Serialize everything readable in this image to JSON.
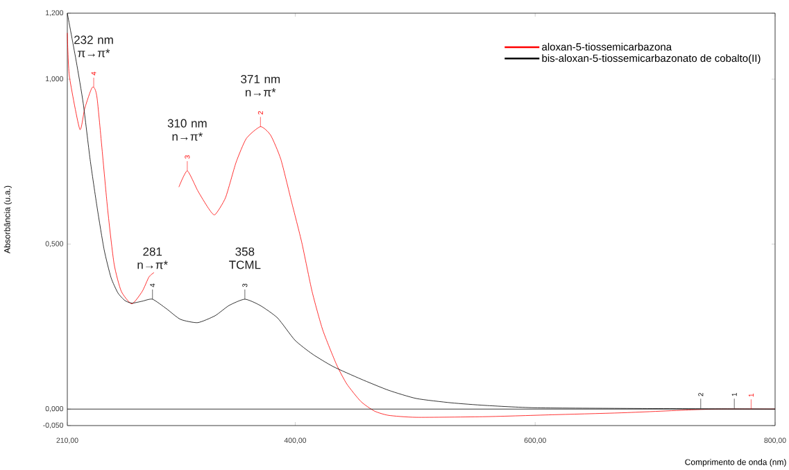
{
  "chart_data": {
    "type": "line",
    "xlabel": "Comprimento de onda (nm)",
    "ylabel": "Absorbância (u.a.)",
    "xlim": [
      210,
      800
    ],
    "ylim": [
      -0.05,
      1.2
    ],
    "xticks": [
      {
        "value": 210,
        "label": "210,00"
      },
      {
        "value": 400,
        "label": "400,00"
      },
      {
        "value": 600,
        "label": "600,00"
      },
      {
        "value": 800,
        "label": "800,00"
      }
    ],
    "yticks": [
      {
        "value": -0.05,
        "label": "-0,050"
      },
      {
        "value": 0,
        "label": "0,000"
      },
      {
        "value": 0.5,
        "label": "0,500"
      },
      {
        "value": 1.0,
        "label": "1,000"
      },
      {
        "value": 1.2,
        "label": "1,200"
      }
    ],
    "legend": "top right",
    "grid": false,
    "ref_lines": [
      {
        "axis": "y",
        "value": 0,
        "color": "#000000"
      }
    ],
    "series": [
      {
        "name": "aloxan-5-tiossemicarbazona",
        "color": "#ff0000",
        "x": [
          210,
          211.7,
          220.4,
          224.5,
          230.8,
          234.9,
          243.5,
          249,
          255,
          263.8,
          272.5,
          278,
          282.3,
          293.9,
          303,
          310,
          318.7,
          327.4,
          333,
          341.9,
          350.6,
          359.2,
          371,
          379.5,
          388,
          396.8,
          405.5,
          414,
          422.9,
          434.4,
          443,
          454.7,
          466,
          477.8,
          501,
          558.8,
          616.6,
          674.5,
          732.3,
          755.5,
          800
        ],
        "values": [
          1.14,
          1.01,
          0.848,
          0.911,
          0.975,
          0.94,
          0.61,
          0.44,
          0.357,
          0.319,
          0.357,
          0.4,
          0.414,
          null,
          0.673,
          0.722,
          0.662,
          0.61,
          0.589,
          0.641,
          0.747,
          0.82,
          0.856,
          0.83,
          0.757,
          0.63,
          0.504,
          0.357,
          0.24,
          0.135,
          0.076,
          0.023,
          -0.006,
          -0.019,
          -0.025,
          -0.023,
          -0.017,
          -0.011,
          -0.002,
          0,
          0
        ]
      },
      {
        "name": "bis-aloxan-5-tiossemicarbazonato de cobalto(II)",
        "color": "#000000",
        "x": [
          210,
          217.5,
          223.3,
          229,
          234.9,
          240.7,
          246.4,
          252.2,
          258,
          263.8,
          272.5,
          281,
          292.7,
          304.3,
          318.7,
          333.2,
          344.8,
          358,
          370.8,
          385.3,
          399.7,
          414.2,
          431.5,
          454.7,
          477.8,
          501,
          529.9,
          558.8,
          599.3,
          674.5,
          800
        ],
        "values": [
          1.2,
          1.053,
          0.926,
          0.757,
          0.61,
          0.483,
          0.399,
          0.352,
          0.329,
          0.321,
          0.327,
          0.333,
          0.304,
          0.272,
          0.262,
          0.283,
          0.314,
          0.333,
          0.314,
          0.276,
          0.209,
          0.167,
          0.129,
          0.091,
          0.057,
          0.032,
          0.019,
          0.011,
          0.004,
          0.002,
          0
        ]
      }
    ],
    "annotations": [
      {
        "text": "232 nm π→π*",
        "x": 232,
        "y": 0.975
      },
      {
        "text": "310 nm n→π*",
        "x": 310,
        "y": 0.722
      },
      {
        "text": "371 nm n→π*",
        "x": 371,
        "y": 0.856
      },
      {
        "text": "281 n→π*",
        "x": 281,
        "y": 0.333
      },
      {
        "text": "358 TCML",
        "x": 358,
        "y": 0.333
      },
      {
        "text": "4",
        "x": 232,
        "y": 0.975
      },
      {
        "text": "3",
        "x": 310,
        "y": 0.722
      },
      {
        "text": "2",
        "x": 371,
        "y": 0.856
      },
      {
        "text": "1",
        "x": 780,
        "y": 0
      },
      {
        "text": "4",
        "x": 281,
        "y": 0.333
      },
      {
        "text": "3",
        "x": 358,
        "y": 0.333
      },
      {
        "text": "2",
        "x": 738,
        "y": 0.002
      },
      {
        "text": "1",
        "x": 766,
        "y": 0.002
      }
    ]
  }
}
